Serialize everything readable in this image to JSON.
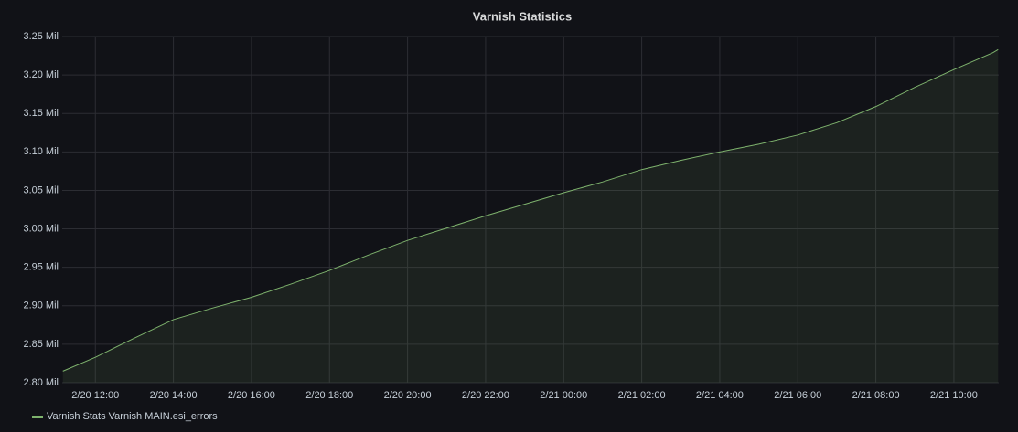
{
  "chart_data": {
    "type": "line",
    "title": "Varnish Statistics",
    "x": [
      "2/20 11:10",
      "2/20 12:00",
      "2/20 13:00",
      "2/20 14:00",
      "2/20 15:00",
      "2/20 16:00",
      "2/20 17:00",
      "2/20 18:00",
      "2/20 19:00",
      "2/20 20:00",
      "2/20 21:00",
      "2/20 22:00",
      "2/20 23:00",
      "2/21 00:00",
      "2/21 01:00",
      "2/21 02:00",
      "2/21 03:00",
      "2/21 04:00",
      "2/21 05:00",
      "2/21 06:00",
      "2/21 07:00",
      "2/21 08:00",
      "2/21 09:00",
      "2/21 10:00",
      "2/21 11:00",
      "2/21 11:08"
    ],
    "series": [
      {
        "name": "Varnish Stats Varnish MAIN.esi_errors",
        "color": "#7eb26d",
        "values": [
          2.815,
          2.833,
          2.858,
          2.882,
          2.897,
          2.911,
          2.928,
          2.946,
          2.966,
          2.985,
          3.001,
          3.017,
          3.032,
          3.047,
          3.061,
          3.077,
          3.089,
          3.1,
          3.11,
          3.122,
          3.138,
          3.159,
          3.184,
          3.207,
          3.229,
          3.233
        ]
      }
    ],
    "xlim": [
      "2/20 11:09",
      "2/21 11:09"
    ],
    "xticks": [
      "2/20 12:00",
      "2/20 14:00",
      "2/20 16:00",
      "2/20 18:00",
      "2/20 20:00",
      "2/20 22:00",
      "2/21 00:00",
      "2/21 02:00",
      "2/21 04:00",
      "2/21 06:00",
      "2/21 08:00",
      "2/21 10:00"
    ],
    "ylim": [
      2.8,
      3.25
    ],
    "yticks": [
      {
        "value": 2.8,
        "label": "2.80 Mil"
      },
      {
        "value": 2.85,
        "label": "2.85 Mil"
      },
      {
        "value": 2.9,
        "label": "2.90 Mil"
      },
      {
        "value": 2.95,
        "label": "2.95 Mil"
      },
      {
        "value": 3.0,
        "label": "3.00 Mil"
      },
      {
        "value": 3.05,
        "label": "3.05 Mil"
      },
      {
        "value": 3.1,
        "label": "3.10 Mil"
      },
      {
        "value": 3.15,
        "label": "3.15 Mil"
      },
      {
        "value": 3.2,
        "label": "3.20 Mil"
      },
      {
        "value": 3.25,
        "label": "3.25 Mil"
      }
    ],
    "grid": true,
    "fill_area": true
  }
}
